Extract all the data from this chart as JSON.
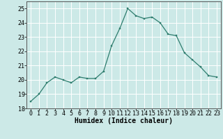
{
  "x": [
    0,
    1,
    2,
    3,
    4,
    5,
    6,
    7,
    8,
    9,
    10,
    11,
    12,
    13,
    14,
    15,
    16,
    17,
    18,
    19,
    20,
    21,
    22,
    23
  ],
  "y": [
    18.5,
    19.0,
    19.8,
    20.2,
    20.0,
    19.8,
    20.2,
    20.1,
    20.1,
    20.6,
    22.4,
    23.6,
    25.0,
    24.5,
    24.3,
    24.4,
    24.0,
    23.2,
    23.1,
    21.9,
    21.4,
    20.9,
    20.3,
    20.2
  ],
  "xlabel": "Humidex (Indice chaleur)",
  "ylim": [
    18,
    25.5
  ],
  "xlim": [
    -0.5,
    23.5
  ],
  "yticks": [
    18,
    19,
    20,
    21,
    22,
    23,
    24,
    25
  ],
  "xticks": [
    0,
    1,
    2,
    3,
    4,
    5,
    6,
    7,
    8,
    9,
    10,
    11,
    12,
    13,
    14,
    15,
    16,
    17,
    18,
    19,
    20,
    21,
    22,
    23
  ],
  "line_color": "#2e7d6e",
  "marker_color": "#2e7d6e",
  "bg_color": "#cce9e7",
  "grid_color": "#ffffff",
  "xlabel_fontsize": 7,
  "tick_fontsize": 6
}
